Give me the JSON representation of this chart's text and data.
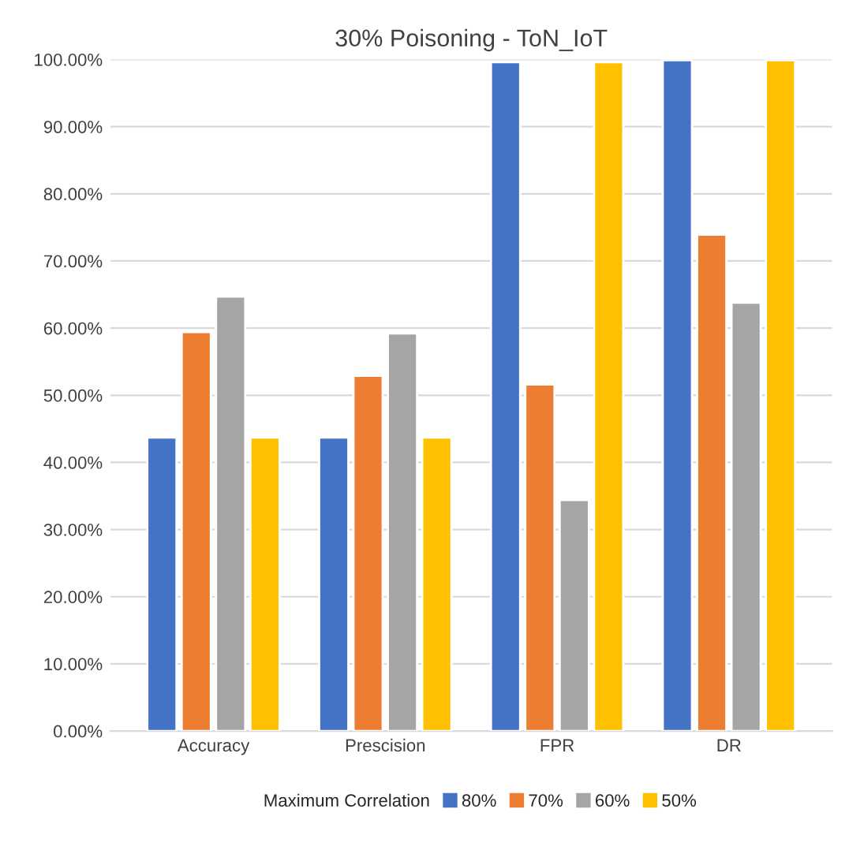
{
  "chart_data": {
    "type": "bar",
    "title": "30% Poisoning - ToN_IoT",
    "categories": [
      "Accuracy",
      "Prescision",
      "FPR",
      "DR"
    ],
    "series": [
      {
        "name": "80%",
        "color": "#4472c4",
        "values": [
          43.7,
          43.7,
          99.6,
          99.9
        ]
      },
      {
        "name": "70%",
        "color": "#ed7d31",
        "values": [
          59.4,
          52.9,
          51.6,
          73.9
        ]
      },
      {
        "name": "60%",
        "color": "#a5a5a5",
        "values": [
          64.7,
          59.2,
          34.4,
          63.8
        ]
      },
      {
        "name": "50%",
        "color": "#ffc000",
        "values": [
          43.7,
          43.7,
          99.6,
          99.9
        ]
      }
    ],
    "legend_title": "Maximum Correlation",
    "legend": "bottom",
    "ylim": [
      0,
      100
    ],
    "yticks": [
      {
        "value": 0,
        "label": "0.00%"
      },
      {
        "value": 10,
        "label": "10.00%"
      },
      {
        "value": 20,
        "label": "20.00%"
      },
      {
        "value": 30,
        "label": "30.00%"
      },
      {
        "value": 40,
        "label": "40.00%"
      },
      {
        "value": 50,
        "label": "50.00%"
      },
      {
        "value": 60,
        "label": "60.00%"
      },
      {
        "value": 70,
        "label": "70.00%"
      },
      {
        "value": 80,
        "label": "80.00%"
      },
      {
        "value": 90,
        "label": "90.00%"
      },
      {
        "value": 100,
        "label": "100.00%"
      }
    ],
    "grid": "y"
  }
}
